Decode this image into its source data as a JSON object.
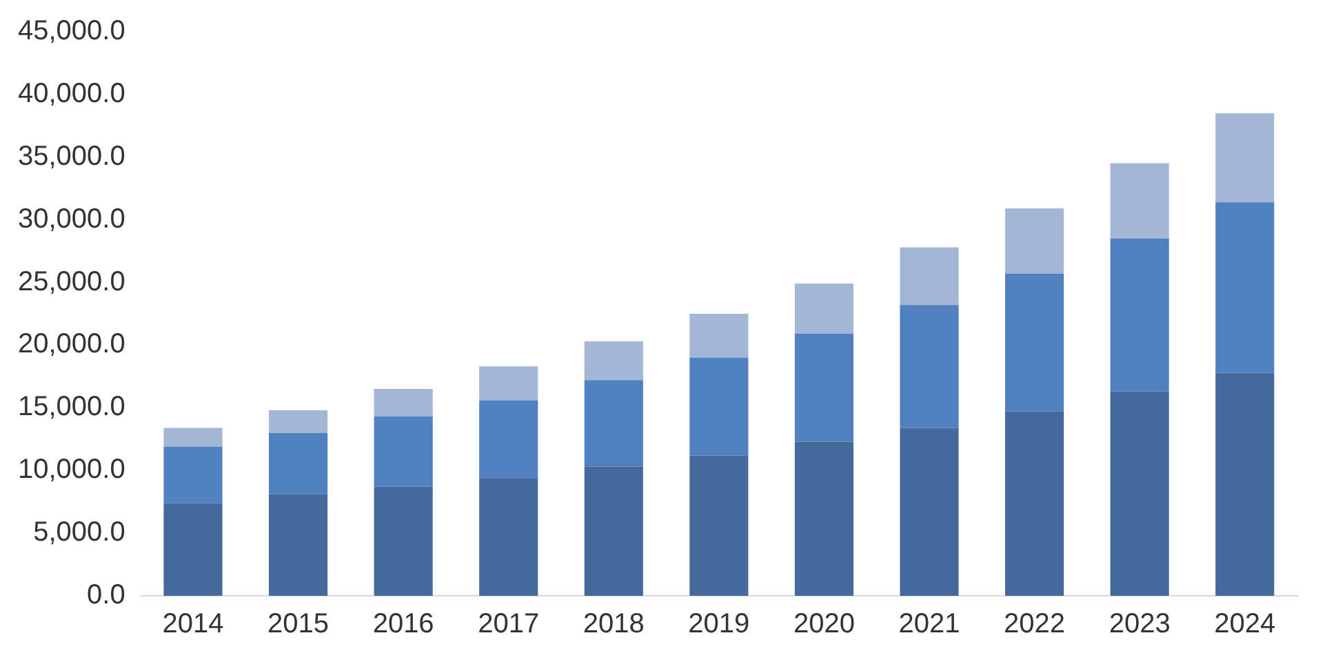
{
  "chart_data": {
    "type": "bar",
    "stacked": true,
    "categories": [
      "2014",
      "2015",
      "2016",
      "2017",
      "2018",
      "2019",
      "2020",
      "2021",
      "2022",
      "2023",
      "2024"
    ],
    "series": [
      {
        "color": "#45699a",
        "values": [
          7400,
          8100,
          8700,
          9400,
          10300,
          11200,
          12300,
          13400,
          14700,
          16300,
          17800
        ]
      },
      {
        "color": "#5180c0",
        "values": [
          4500,
          4900,
          5600,
          6200,
          6900,
          7800,
          8600,
          9800,
          11000,
          12200,
          13600
        ]
      },
      {
        "color": "#a4b6d6",
        "values": [
          1500,
          1800,
          2200,
          2700,
          3100,
          3500,
          4000,
          4600,
          5200,
          6000,
          7100
        ]
      }
    ],
    "ylim": [
      0,
      45000
    ],
    "yticks": [
      {
        "value": 0,
        "label": "0.0"
      },
      {
        "value": 5000,
        "label": "5,000.0"
      },
      {
        "value": 10000,
        "label": "10,000.0"
      },
      {
        "value": 15000,
        "label": "15,000.0"
      },
      {
        "value": 20000,
        "label": "20,000.0"
      },
      {
        "value": 25000,
        "label": "25,000.0"
      },
      {
        "value": 30000,
        "label": "30,000.0"
      },
      {
        "value": 35000,
        "label": "35,000.0"
      },
      {
        "value": 40000,
        "label": "40,000.0"
      },
      {
        "value": 45000,
        "label": "45,000.0"
      }
    ],
    "grid": false,
    "legend": false
  }
}
